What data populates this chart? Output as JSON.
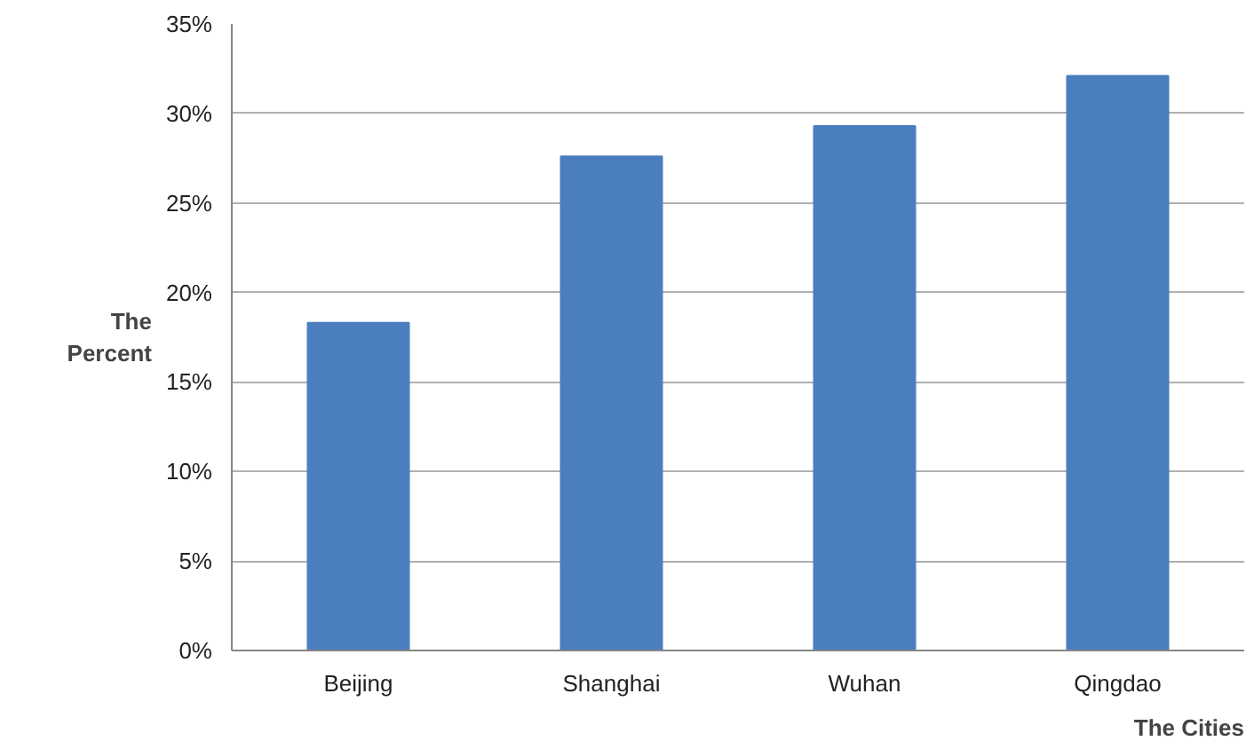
{
  "chart_data": {
    "type": "bar",
    "xlabel": "The Cities",
    "ylabel": "The Percent",
    "categories": [
      "Beijing",
      "Shanghai",
      "Wuhan",
      "Qingdao"
    ],
    "values": [
      18.3,
      27.6,
      29.3,
      32.1
    ],
    "color": "#4a7ebf",
    "ylim": [
      0,
      35
    ],
    "yticks": [
      {
        "value": 0,
        "label": "0%"
      },
      {
        "value": 5,
        "label": "5%"
      },
      {
        "value": 10,
        "label": "10%"
      },
      {
        "value": 15,
        "label": "15%"
      },
      {
        "value": 20,
        "label": "20%"
      },
      {
        "value": 25,
        "label": "25%"
      },
      {
        "value": 30,
        "label": "30%"
      },
      {
        "value": 35,
        "label": "35%"
      }
    ],
    "grid": "y"
  }
}
